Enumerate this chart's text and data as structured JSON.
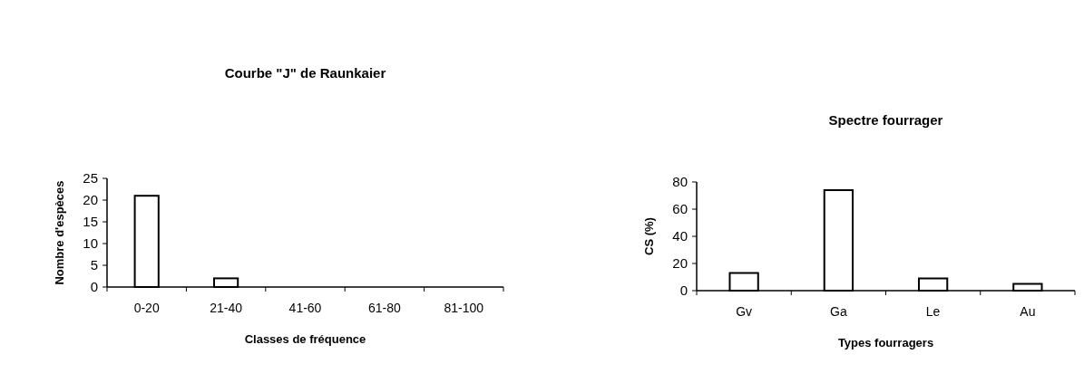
{
  "chart_data": [
    {
      "type": "bar",
      "title": "Courbe \"J\" de Raunkaier",
      "xlabel": "Classes de fréquence",
      "ylabel": "Nombre d'espèces",
      "categories": [
        "0-20",
        "21-40",
        "41-60",
        "61-80",
        "81-100"
      ],
      "values": [
        21,
        2,
        0,
        0,
        0
      ],
      "color": "#ffffff",
      "ylim": [
        0,
        25
      ],
      "yticks": [
        0,
        5,
        10,
        15,
        20,
        25
      ],
      "grid": false
    },
    {
      "type": "bar",
      "title": "Spectre fourrager",
      "xlabel": "Types fourragers",
      "ylabel": "CS (%)",
      "categories": [
        "Gv",
        "Ga",
        "Le",
        "Au"
      ],
      "values": [
        13,
        74,
        9,
        5
      ],
      "color": "#ffffff",
      "ylim": [
        0,
        80
      ],
      "yticks": [
        0,
        20,
        40,
        60,
        80
      ],
      "grid": false
    }
  ]
}
